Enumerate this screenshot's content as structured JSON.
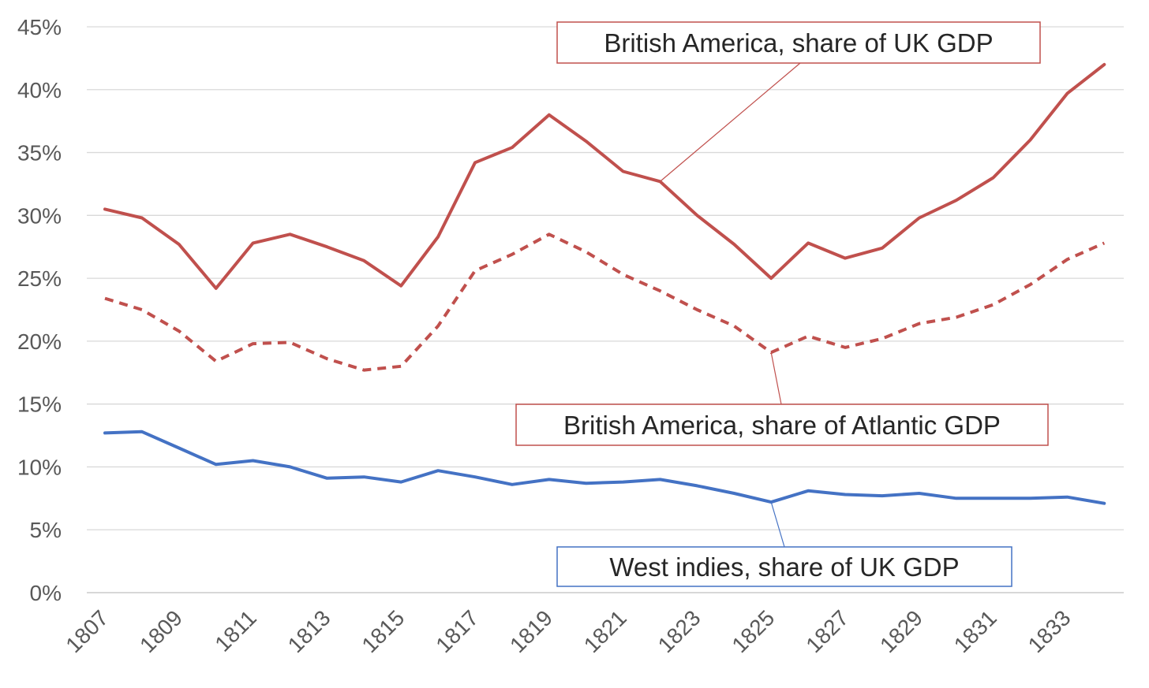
{
  "chart_data": {
    "type": "line",
    "x": [
      1807,
      1808,
      1809,
      1810,
      1811,
      1812,
      1813,
      1814,
      1815,
      1816,
      1817,
      1818,
      1819,
      1820,
      1821,
      1822,
      1823,
      1824,
      1825,
      1826,
      1827,
      1828,
      1829,
      1830,
      1831,
      1832,
      1833,
      1834
    ],
    "x_tick_labels": [
      "1807",
      "1809",
      "1811",
      "1813",
      "1815",
      "1817",
      "1819",
      "1821",
      "1823",
      "1825",
      "1827",
      "1829",
      "1831",
      "1833"
    ],
    "ylim": [
      0,
      45
    ],
    "y_tick_labels": [
      "0%",
      "5%",
      "10%",
      "15%",
      "20%",
      "25%",
      "30%",
      "35%",
      "40%",
      "45%"
    ],
    "y_unit": "%",
    "grid": true,
    "series": [
      {
        "name": "British America, share of UK GDP",
        "color": "#c0504d",
        "style": "solid",
        "values": [
          30.5,
          29.8,
          27.7,
          24.2,
          27.8,
          28.5,
          27.5,
          26.4,
          24.4,
          28.3,
          34.2,
          35.4,
          38.0,
          35.9,
          33.5,
          32.7,
          30.0,
          27.7,
          25.0,
          27.8,
          26.6,
          27.4,
          29.8,
          31.2,
          33.0,
          36.0,
          39.7,
          42.0
        ]
      },
      {
        "name": "British America, share of Atlantic  GDP",
        "color": "#c0504d",
        "style": "dashed",
        "values": [
          23.4,
          22.5,
          20.8,
          18.4,
          19.8,
          19.9,
          18.6,
          17.7,
          18.0,
          21.2,
          25.6,
          26.9,
          28.5,
          27.1,
          25.3,
          24.0,
          22.5,
          21.2,
          19.1,
          20.4,
          19.5,
          20.2,
          21.4,
          21.9,
          22.9,
          24.5,
          26.5,
          27.8
        ]
      },
      {
        "name": "West indies, share of UK GDP",
        "color": "#4472c4",
        "style": "solid",
        "values": [
          12.7,
          12.8,
          11.5,
          10.2,
          10.5,
          10.0,
          9.1,
          9.2,
          8.8,
          9.7,
          9.2,
          8.6,
          9.0,
          8.7,
          8.8,
          9.0,
          8.5,
          7.9,
          7.2,
          8.1,
          7.8,
          7.7,
          7.9,
          7.5,
          7.5,
          7.5,
          7.6,
          7.1
        ]
      }
    ],
    "annotations": [
      {
        "text": "British America, share of UK GDP",
        "series_index": 0,
        "point_x": 1822
      },
      {
        "text": "British America, share of Atlantic  GDP",
        "series_index": 1,
        "point_x": 1825
      },
      {
        "text": "West indies, share of UK GDP",
        "series_index": 2,
        "point_x": 1825
      }
    ]
  }
}
